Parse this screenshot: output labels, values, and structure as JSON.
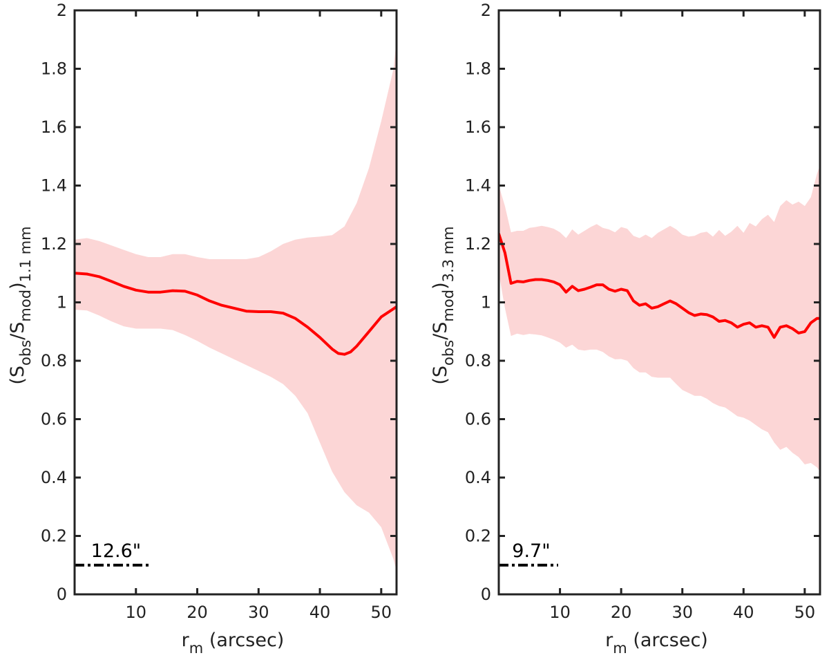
{
  "chart_data": [
    {
      "type": "line",
      "panel": "left",
      "title": "",
      "xlabel_main": "r",
      "xlabel_sub": "m",
      "xlabel_rest": " (arcsec)",
      "ylabel_parts": [
        "(S",
        "obs",
        "/S",
        "mod",
        ")",
        "1.1 mm"
      ],
      "xlim": [
        0,
        52.5
      ],
      "ylim": [
        0,
        2
      ],
      "xticks": [
        10,
        20,
        30,
        40,
        50
      ],
      "xtick_labels": [
        "10",
        "20",
        "30",
        "40",
        "50"
      ],
      "yticks": [
        0,
        0.2,
        0.4,
        0.6,
        0.8,
        1,
        1.2,
        1.4,
        1.6,
        1.8,
        2
      ],
      "ytick_labels": [
        "0",
        "0.2",
        "0.4",
        "0.6",
        "0.8",
        "1",
        "1.2",
        "1.4",
        "1.6",
        "1.8",
        "2"
      ],
      "series": [
        {
          "name": "ratio",
          "color": "#ff0000",
          "x": [
            0,
            2,
            4,
            6,
            8,
            10,
            12,
            14,
            16,
            18,
            20,
            22,
            24,
            26,
            28,
            30,
            32,
            34,
            36,
            38,
            40,
            42,
            43,
            44,
            45,
            46,
            48,
            50,
            52,
            52.5
          ],
          "y": [
            1.1,
            1.097,
            1.088,
            1.072,
            1.055,
            1.042,
            1.035,
            1.035,
            1.04,
            1.038,
            1.025,
            1.005,
            0.99,
            0.98,
            0.97,
            0.968,
            0.968,
            0.963,
            0.945,
            0.915,
            0.88,
            0.84,
            0.825,
            0.822,
            0.83,
            0.85,
            0.9,
            0.95,
            0.978,
            0.985
          ]
        }
      ],
      "band": {
        "color": "#fcd6d6",
        "x": [
          0,
          2,
          4,
          6,
          8,
          10,
          12,
          14,
          16,
          18,
          20,
          22,
          24,
          26,
          28,
          30,
          32,
          34,
          36,
          38,
          40,
          42,
          44,
          46,
          48,
          50,
          52,
          52.5
        ],
        "upper": [
          1.215,
          1.22,
          1.21,
          1.195,
          1.18,
          1.165,
          1.155,
          1.155,
          1.165,
          1.165,
          1.155,
          1.148,
          1.148,
          1.148,
          1.148,
          1.155,
          1.175,
          1.2,
          1.215,
          1.222,
          1.225,
          1.23,
          1.26,
          1.34,
          1.46,
          1.62,
          1.8,
          1.9
        ],
        "lower": [
          0.975,
          0.972,
          0.955,
          0.935,
          0.918,
          0.91,
          0.91,
          0.91,
          0.905,
          0.888,
          0.868,
          0.845,
          0.825,
          0.805,
          0.785,
          0.765,
          0.745,
          0.72,
          0.68,
          0.62,
          0.52,
          0.42,
          0.35,
          0.305,
          0.28,
          0.23,
          0.12,
          0.08
        ]
      },
      "annotation": {
        "label": "12.6\"",
        "line_x": [
          0,
          12.6
        ],
        "line_y": 0.1,
        "label_y": 0.13
      }
    },
    {
      "type": "line",
      "panel": "right",
      "title": "",
      "xlabel_main": "r",
      "xlabel_sub": "m",
      "xlabel_rest": " (arcsec)",
      "ylabel_parts": [
        "(S",
        "obs",
        "/S",
        "mod",
        ")",
        "3.3 mm"
      ],
      "xlim": [
        0,
        52.5
      ],
      "ylim": [
        0,
        2
      ],
      "xticks": [
        10,
        20,
        30,
        40,
        50
      ],
      "xtick_labels": [
        "10",
        "20",
        "30",
        "40",
        "50"
      ],
      "yticks": [
        0,
        0.2,
        0.4,
        0.6,
        0.8,
        1,
        1.2,
        1.4,
        1.6,
        1.8,
        2
      ],
      "ytick_labels": [
        "0",
        "0.2",
        "0.4",
        "0.6",
        "0.8",
        "1",
        "1.2",
        "1.4",
        "1.6",
        "1.8",
        "2"
      ],
      "series": [
        {
          "name": "ratio",
          "color": "#ff0000",
          "x": [
            0,
            1,
            2,
            3,
            4,
            5,
            6,
            7,
            8,
            9,
            10,
            11,
            12,
            13,
            14,
            15,
            16,
            17,
            18,
            19,
            20,
            21,
            22,
            23,
            24,
            25,
            26,
            27,
            28,
            29,
            30,
            31,
            32,
            33,
            34,
            35,
            36,
            37,
            38,
            39,
            40,
            41,
            42,
            43,
            44,
            45,
            46,
            47,
            48,
            49,
            50,
            51,
            52,
            52.5
          ],
          "y": [
            1.235,
            1.17,
            1.065,
            1.072,
            1.07,
            1.075,
            1.078,
            1.078,
            1.075,
            1.07,
            1.06,
            1.035,
            1.055,
            1.04,
            1.045,
            1.052,
            1.06,
            1.06,
            1.045,
            1.038,
            1.045,
            1.04,
            1.005,
            0.99,
            0.995,
            0.98,
            0.985,
            0.995,
            1.005,
            0.995,
            0.98,
            0.965,
            0.955,
            0.96,
            0.958,
            0.95,
            0.935,
            0.938,
            0.93,
            0.915,
            0.925,
            0.93,
            0.915,
            0.92,
            0.915,
            0.88,
            0.915,
            0.92,
            0.91,
            0.895,
            0.9,
            0.93,
            0.945,
            0.945
          ]
        }
      ],
      "band": {
        "color": "#fcd6d6",
        "x": [
          0,
          1,
          2,
          3,
          4,
          5,
          6,
          7,
          8,
          9,
          10,
          11,
          12,
          13,
          14,
          15,
          16,
          17,
          18,
          19,
          20,
          21,
          22,
          23,
          24,
          25,
          26,
          27,
          28,
          29,
          30,
          31,
          32,
          33,
          34,
          35,
          36,
          37,
          38,
          39,
          40,
          41,
          42,
          43,
          44,
          45,
          46,
          47,
          48,
          49,
          50,
          51,
          52,
          52.5
        ],
        "upper": [
          1.4,
          1.33,
          1.24,
          1.245,
          1.245,
          1.255,
          1.258,
          1.262,
          1.258,
          1.252,
          1.24,
          1.22,
          1.25,
          1.232,
          1.245,
          1.258,
          1.268,
          1.255,
          1.25,
          1.24,
          1.258,
          1.252,
          1.228,
          1.22,
          1.232,
          1.22,
          1.238,
          1.25,
          1.262,
          1.25,
          1.232,
          1.225,
          1.228,
          1.238,
          1.242,
          1.225,
          1.248,
          1.228,
          1.242,
          1.262,
          1.238,
          1.272,
          1.26,
          1.285,
          1.3,
          1.275,
          1.33,
          1.35,
          1.335,
          1.345,
          1.33,
          1.36,
          1.44,
          1.47
        ],
        "lower": [
          1.1,
          0.98,
          0.885,
          0.893,
          0.888,
          0.892,
          0.89,
          0.887,
          0.88,
          0.872,
          0.862,
          0.845,
          0.855,
          0.838,
          0.835,
          0.838,
          0.838,
          0.83,
          0.815,
          0.805,
          0.806,
          0.8,
          0.775,
          0.76,
          0.76,
          0.745,
          0.742,
          0.742,
          0.742,
          0.72,
          0.7,
          0.69,
          0.68,
          0.68,
          0.67,
          0.655,
          0.645,
          0.64,
          0.625,
          0.61,
          0.605,
          0.595,
          0.58,
          0.565,
          0.555,
          0.52,
          0.495,
          0.505,
          0.485,
          0.47,
          0.445,
          0.45,
          0.435,
          0.42
        ]
      },
      "annotation": {
        "label": "9.7\"",
        "line_x": [
          0,
          9.7
        ],
        "line_y": 0.1,
        "label_y": 0.13
      }
    }
  ]
}
